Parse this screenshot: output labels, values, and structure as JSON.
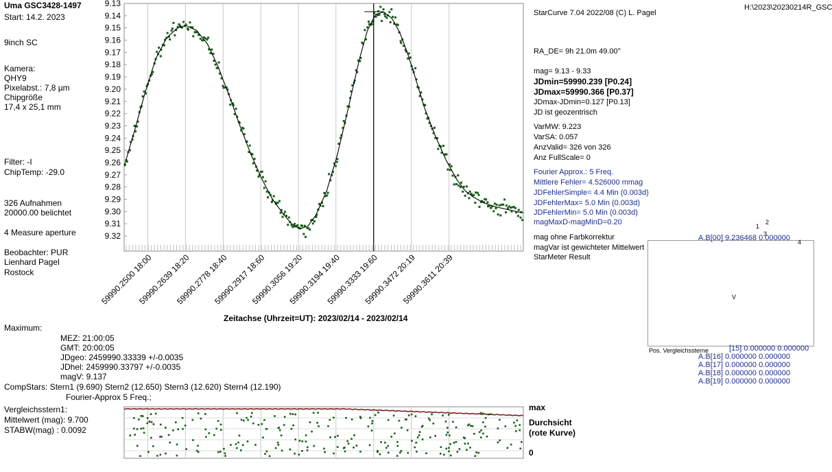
{
  "header": {
    "title": "Uma GSC3428-1497",
    "start": "Start: 14.2. 2023",
    "software": "StarCurve 7.04   2022/08  (C) L. Pagel",
    "file_path": "H:\\2023\\20230214R_GSC"
  },
  "left_panel": {
    "telescope": "9inch SC",
    "camera_label": "Kamera:",
    "camera": "QHY9",
    "pixel": "Pixelabst.: 7,8 µm",
    "chip_label": "Chipgröße",
    "chip_size": "17,4 x 25,1 mm",
    "filter": "Filter: -I",
    "chip_temp": "ChipTemp: -29.0",
    "images": "326 Aufnahmen",
    "exposure": "20000.00 belichtet",
    "aperture": "4 Measure aperture",
    "observer": "Beobachter:  PUR",
    "observer_name": "Lienhard Pagel",
    "location": "Rostock"
  },
  "info_panel": {
    "ra_de": "RA_DE= 9h 21.0m 49.00°",
    "mag_range": "mag= 9.13 -  9.33",
    "jdmin": "JDmin=59990.239 [P0.24]",
    "jdmax": "JDmax=59990.366 [P0.37]",
    "jd_diff": "JDmax-JDmin=0.127 [P0.13]",
    "jd_geo": "JD ist geozentrisch",
    "var_mw": "VarMW: 9.223",
    "var_sa": "VarSA: 0.057",
    "anz_valid": "AnzValid= 326 von 326",
    "anz_fullscale": "Anz FullScale= 0",
    "fourier": "Fourier Approx.: 5 Freq.",
    "mittlere": "Mittlere Fehler= 4.526000 mmag",
    "jdf_simple": "JDFehlerSimple=   4.4 Min (0.003d)",
    "jdf_max": "JDFehlerMax=   5.0 Min (0.003d)",
    "jdf_min": "JDFehlerMin=   5.0 Min (0.003d)",
    "mag_maxmin": "magMaxD-magMinD=0.20",
    "no_color": "mag ohne Farbkorrektur",
    "magvar": "magVar ist gewichteter Mittelwert",
    "starmeter": "StarMeter Result"
  },
  "fourier_box": {
    "first_coef": "A.B[00] 9.236468 0.000000",
    "marks": [
      "1",
      "2",
      "3",
      "4",
      "V"
    ],
    "pos_label": "Pos. Vergleichssterne",
    "coef_rows": [
      "[15] 0.000000 0.000000",
      "A.B[16] 0.000000 0.000000",
      "A.B[17] 0.000000 0.000000",
      "A.B[18] 0.000000 0.000000",
      "A.B[19] 0.000000 0.000000"
    ]
  },
  "maximum": {
    "label": "Maximum:",
    "mez": "MEZ:   21:00:05",
    "gmt": "GMT:   20:00:05",
    "jdgeo": "JDgeo: 2459990.33339   +/-0.0035",
    "jdhel": "JDhel: 2459990.33797  +/-0.0035",
    "magv": "magV:       9.137"
  },
  "comp": {
    "stars": "CompStars: Stern1 (9.690) Stern2 (12.650) Stern3 (12.620) Stern4 (12.190)",
    "fourier": "Fourier-Approx 5 Freq.;",
    "label": "Vergleichsstern1:",
    "mean": "Mittelwert (mag):  9.700",
    "stdev": "STABW(mag)    :  0.0092",
    "right_max": "max",
    "right_durch": "Durchsicht",
    "right_rote": "(rote Kurve)",
    "right_zero": "0"
  },
  "colors": {
    "points": "#155f15",
    "curve": "#111111",
    "grid": "#c8c8c8",
    "red_curve": "#7a2020",
    "navy_text": "#1e2c8c"
  },
  "chart_data": {
    "type": "scatter",
    "title": "",
    "xlabel": "Zeitachse (Uhrzeit=UT):  2023/02/14  -  2023/02/14",
    "ylabel": "",
    "xlim": [
      59990.2413,
      59990.3885
    ],
    "ylim": [
      9.13,
      9.325
    ],
    "y_inverted": true,
    "grid": true,
    "yticks": [
      "9.13",
      "9.14",
      "9.15",
      "9.16",
      "9.17",
      "9.18",
      "9.19",
      "9.20",
      "9.21",
      "9.22",
      "9.23",
      "9.24",
      "9.25",
      "9.26",
      "9.27",
      "9.28",
      "9.29",
      "9.30",
      "9.31",
      "9.32"
    ],
    "xtick_values": [
      59990.25,
      59990.2639,
      59990.2778,
      59990.2917,
      59990.3056,
      59990.3194,
      59990.3333,
      59990.3472,
      59990.3611
    ],
    "xtick_labels": [
      "59990.2500  18:00",
      "59990.2639  18:20",
      "59990.2778  18:40",
      "59990.2917  18:60",
      "59990.3056  19:20",
      "59990.3194  19:40",
      "59990.3333  19:60",
      "59990.3472  20:19",
      "59990.3611  20:39"
    ],
    "curve": {
      "name": "Fourier Approx",
      "x": [
        59990.2413,
        59990.245,
        59990.249,
        59990.253,
        59990.257,
        59990.261,
        59990.264,
        59990.268,
        59990.272,
        59990.276,
        59990.28,
        59990.284,
        59990.288,
        59990.292,
        59990.296,
        59990.3,
        59990.303,
        59990.306,
        59990.309,
        59990.312,
        59990.316,
        59990.32,
        59990.324,
        59990.328,
        59990.331,
        59990.334,
        59990.337,
        59990.34,
        59990.343,
        59990.346,
        59990.349,
        59990.352,
        59990.356,
        59990.36,
        59990.364,
        59990.367,
        59990.37,
        59990.374,
        59990.378,
        59990.382,
        59990.386,
        59990.3885
      ],
      "y": [
        9.263,
        9.235,
        9.203,
        9.175,
        9.158,
        9.15,
        9.148,
        9.152,
        9.163,
        9.182,
        9.205,
        9.23,
        9.253,
        9.273,
        9.29,
        9.302,
        9.31,
        9.314,
        9.312,
        9.303,
        9.283,
        9.253,
        9.215,
        9.176,
        9.152,
        9.139,
        9.137,
        9.142,
        9.154,
        9.172,
        9.193,
        9.215,
        9.238,
        9.258,
        9.274,
        9.283,
        9.288,
        9.293,
        9.296,
        9.298,
        9.3,
        9.301
      ]
    },
    "cursor": {
      "x": 59990.3333,
      "y": 9.137,
      "hline_x": [
        59990.3299,
        59990.337
      ]
    },
    "comparison": {
      "name": "Vergleichsstern1",
      "mean_mag": 9.7,
      "stdev_mag": 0.0092
    }
  }
}
